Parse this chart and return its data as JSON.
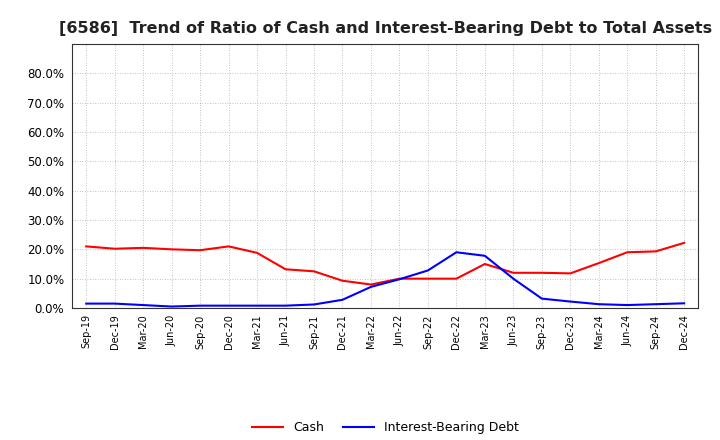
{
  "title": "[6586]  Trend of Ratio of Cash and Interest-Bearing Debt to Total Assets",
  "x_labels": [
    "Sep-19",
    "Dec-19",
    "Mar-20",
    "Jun-20",
    "Sep-20",
    "Dec-20",
    "Mar-21",
    "Jun-21",
    "Sep-21",
    "Dec-21",
    "Mar-22",
    "Jun-22",
    "Sep-22",
    "Dec-22",
    "Mar-23",
    "Jun-23",
    "Sep-23",
    "Dec-23",
    "Mar-24",
    "Jun-24",
    "Sep-24",
    "Dec-24"
  ],
  "cash": [
    0.21,
    0.202,
    0.205,
    0.2,
    0.197,
    0.21,
    0.188,
    0.132,
    0.125,
    0.093,
    0.08,
    0.1,
    0.1,
    0.1,
    0.15,
    0.12,
    0.12,
    0.118,
    0.153,
    0.19,
    0.193,
    0.222
  ],
  "debt": [
    0.015,
    0.015,
    0.01,
    0.005,
    0.008,
    0.008,
    0.008,
    0.008,
    0.012,
    0.028,
    0.072,
    0.098,
    0.128,
    0.19,
    0.178,
    0.1,
    0.032,
    0.022,
    0.013,
    0.01,
    0.013,
    0.016
  ],
  "cash_color": "#ff0000",
  "debt_color": "#0000ff",
  "ylim": [
    0.0,
    0.9
  ],
  "yticks": [
    0.0,
    0.1,
    0.2,
    0.3,
    0.4,
    0.5,
    0.6,
    0.7,
    0.8
  ],
  "grid_color": "#b0b0b0",
  "background_color": "#ffffff",
  "plot_bg_color": "#f5f5f5",
  "title_fontsize": 11.5,
  "legend_cash": "Cash",
  "legend_debt": "Interest-Bearing Debt",
  "line_width": 1.5
}
